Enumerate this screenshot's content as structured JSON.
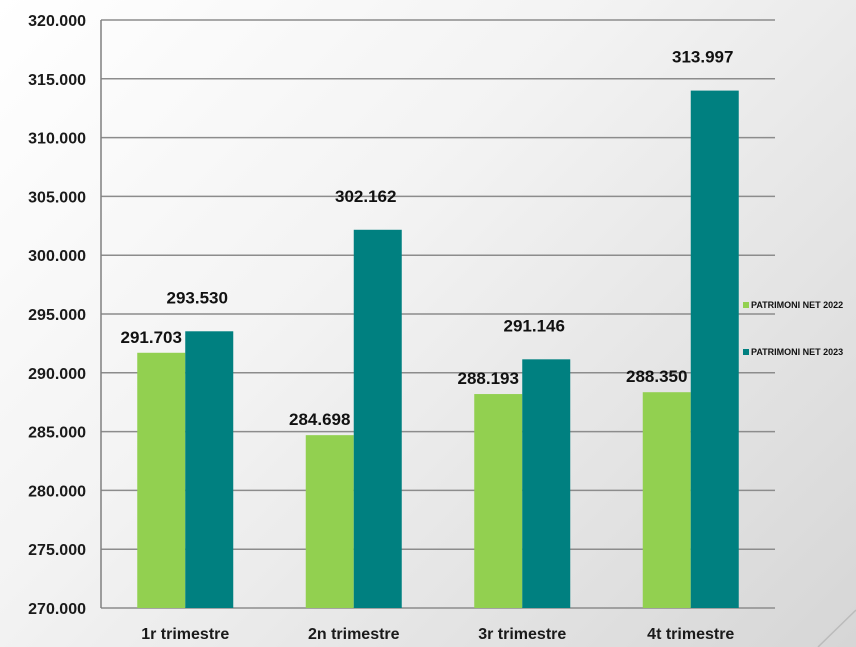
{
  "chart_data": {
    "type": "bar",
    "categories": [
      "1r trimestre",
      "2n trimestre",
      "3r trimestre",
      "4t trimestre"
    ],
    "series": [
      {
        "name": "PATRIMONI NET 2022",
        "color": "#92d050",
        "values": [
          291703,
          284698,
          288193,
          288350
        ],
        "labels": [
          "291.703",
          "284.698",
          "288.193",
          "288.350"
        ]
      },
      {
        "name": "PATRIMONI NET 2023",
        "color": "#008080",
        "values": [
          293530,
          302162,
          291146,
          313997
        ],
        "labels": [
          "293.530",
          "302.162",
          "291.146",
          "313.997"
        ]
      }
    ],
    "ylim": [
      270000,
      320000
    ],
    "yticks": [
      270000,
      275000,
      280000,
      285000,
      290000,
      295000,
      300000,
      305000,
      310000,
      315000,
      320000
    ],
    "ytick_labels": [
      "270.000",
      "275.000",
      "280.000",
      "285.000",
      "290.000",
      "295.000",
      "300.000",
      "305.000",
      "310.000",
      "315.000",
      "320.000"
    ],
    "grid": true,
    "legend_position": "right",
    "title": "",
    "xlabel": "",
    "ylabel": ""
  }
}
